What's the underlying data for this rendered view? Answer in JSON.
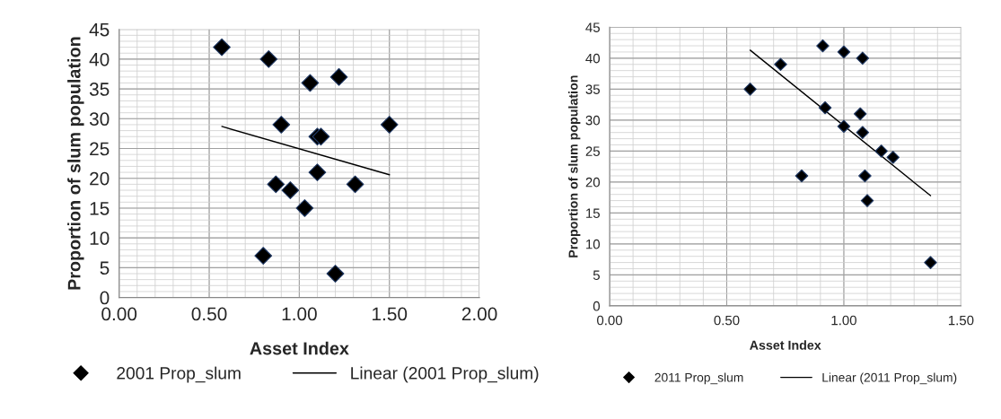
{
  "chart_data": [
    {
      "type": "scatter",
      "xlabel": "Asset Index",
      "ylabel": "Proportion of slum population",
      "marker": "diamond",
      "grid": true,
      "legend": "bottom",
      "xlim": [
        0,
        2
      ],
      "xticks": [
        {
          "value": 0,
          "label": "0.00"
        },
        {
          "value": 0.5,
          "label": "0.50"
        },
        {
          "value": 1,
          "label": "1.00"
        },
        {
          "value": 1.5,
          "label": "1.50"
        },
        {
          "value": 2,
          "label": "2.00"
        }
      ],
      "ylim": [
        0,
        45
      ],
      "yticks": [
        0,
        5,
        10,
        15,
        20,
        25,
        30,
        35,
        40,
        45
      ],
      "series": [
        {
          "name": "2001 Prop_slum",
          "color": "#000000",
          "x": [
            0.57,
            0.83,
            1.06,
            1.22,
            0.9,
            1.5,
            1.1,
            1.12,
            1.1,
            0.87,
            0.95,
            1.31,
            1.03,
            0.8,
            1.2
          ],
          "values": [
            42,
            40,
            36,
            37,
            29,
            29,
            27,
            27,
            21,
            19,
            18,
            19,
            15,
            7,
            4
          ]
        },
        {
          "name": "Linear (2001 Prop_slum)",
          "type": "line",
          "marker": "none",
          "color": "#000000",
          "x": [
            0.57,
            1.5
          ],
          "values": [
            28.7,
            20.6
          ]
        }
      ]
    },
    {
      "type": "scatter",
      "xlabel": "Asset Index",
      "ylabel": "Proportion of slum population",
      "marker": "diamond",
      "grid": true,
      "legend": "bottom",
      "xlim": [
        0,
        1.5
      ],
      "xticks": [
        {
          "value": 0,
          "label": "0.00"
        },
        {
          "value": 0.5,
          "label": "0.50"
        },
        {
          "value": 1,
          "label": "1.00"
        },
        {
          "value": 1.5,
          "label": "1.50"
        }
      ],
      "ylim": [
        0,
        45
      ],
      "yticks": [
        0,
        5,
        10,
        15,
        20,
        25,
        30,
        35,
        40,
        45
      ],
      "series": [
        {
          "name": "2011 Prop_slum",
          "color": "#000000",
          "x": [
            0.6,
            0.73,
            0.91,
            1.0,
            1.08,
            0.92,
            1.07,
            1.0,
            1.08,
            1.16,
            1.21,
            0.82,
            1.09,
            1.1,
            1.37
          ],
          "values": [
            35,
            39,
            42,
            41,
            40,
            32,
            31,
            29,
            28,
            25,
            24,
            21,
            21,
            17,
            7
          ]
        },
        {
          "name": "Linear (2011 Prop_slum)",
          "type": "line",
          "marker": "none",
          "color": "#000000",
          "x": [
            0.6,
            1.37
          ],
          "values": [
            41.3,
            17.8
          ]
        }
      ]
    }
  ]
}
